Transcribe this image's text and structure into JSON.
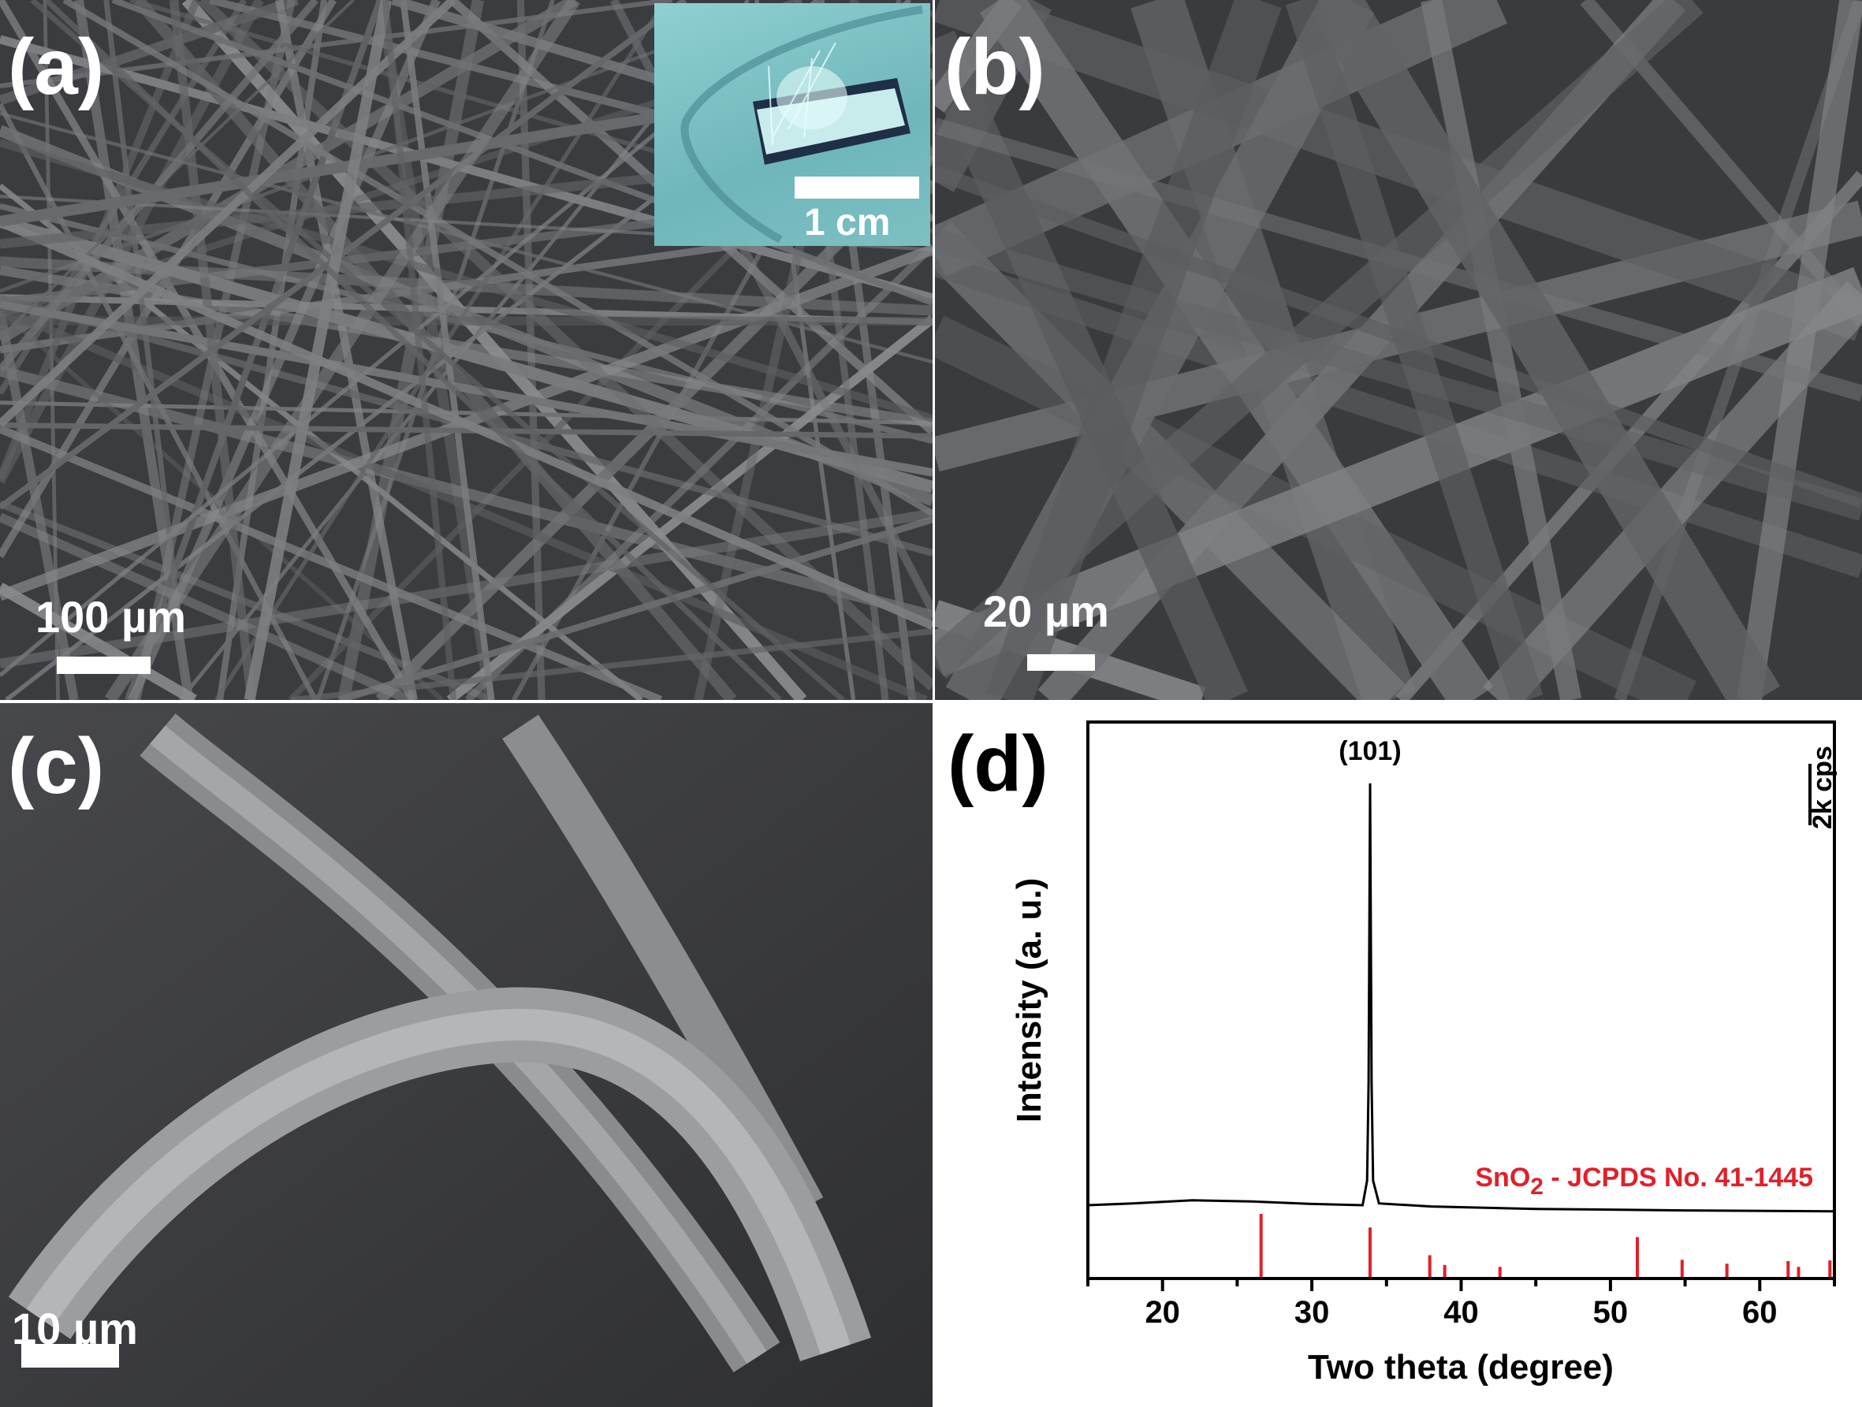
{
  "panels": {
    "a": {
      "label": "(a)",
      "scale_bar": "100 µm",
      "inset": {
        "scale_bar": "1 cm"
      }
    },
    "b": {
      "label": "(b)",
      "scale_bar": "20 µm"
    },
    "c": {
      "label": "(c)",
      "scale_bar": "10 µm"
    },
    "d": {
      "label": "(d)"
    }
  },
  "chart_data": {
    "type": "line",
    "xlabel": "Two theta (degree)",
    "ylabel": "Intensity (a. u.)",
    "xlim": [
      15,
      65
    ],
    "xticks": [
      20,
      30,
      40,
      50,
      60
    ],
    "grid": false,
    "scale_bar_label": "2k cps",
    "peak_annotation": {
      "text": "(101)",
      "x": 33.9
    },
    "series": [
      {
        "color": "#000000",
        "points": [
          [
            15,
            0
          ],
          [
            18,
            60
          ],
          [
            22,
            160
          ],
          [
            26,
            120
          ],
          [
            30,
            40
          ],
          [
            33.4,
            0
          ],
          [
            33.7,
            800
          ],
          [
            33.8,
            4000
          ],
          [
            33.9,
            13700
          ],
          [
            34.0,
            4000
          ],
          [
            34.1,
            800
          ],
          [
            34.5,
            60
          ],
          [
            38,
            -40
          ],
          [
            45,
            -120
          ],
          [
            55,
            -170
          ],
          [
            65,
            -200
          ]
        ]
      },
      {
        "name": "SnO2 - JCPDS No. 41-1445",
        "color": "#e0202a",
        "type": "stick",
        "x": [
          26.6,
          33.9,
          37.9,
          38.9,
          42.6,
          51.8,
          54.8,
          57.8,
          61.9,
          62.6,
          64.7
        ],
        "relative_intensity": [
          100,
          79,
          36,
          21,
          18,
          64,
          29,
          23,
          27,
          18,
          28
        ]
      }
    ],
    "legend_text": {
      "main": "SnO",
      "sub": "2",
      "rest": " - JCPDS No. 41-1445"
    }
  }
}
